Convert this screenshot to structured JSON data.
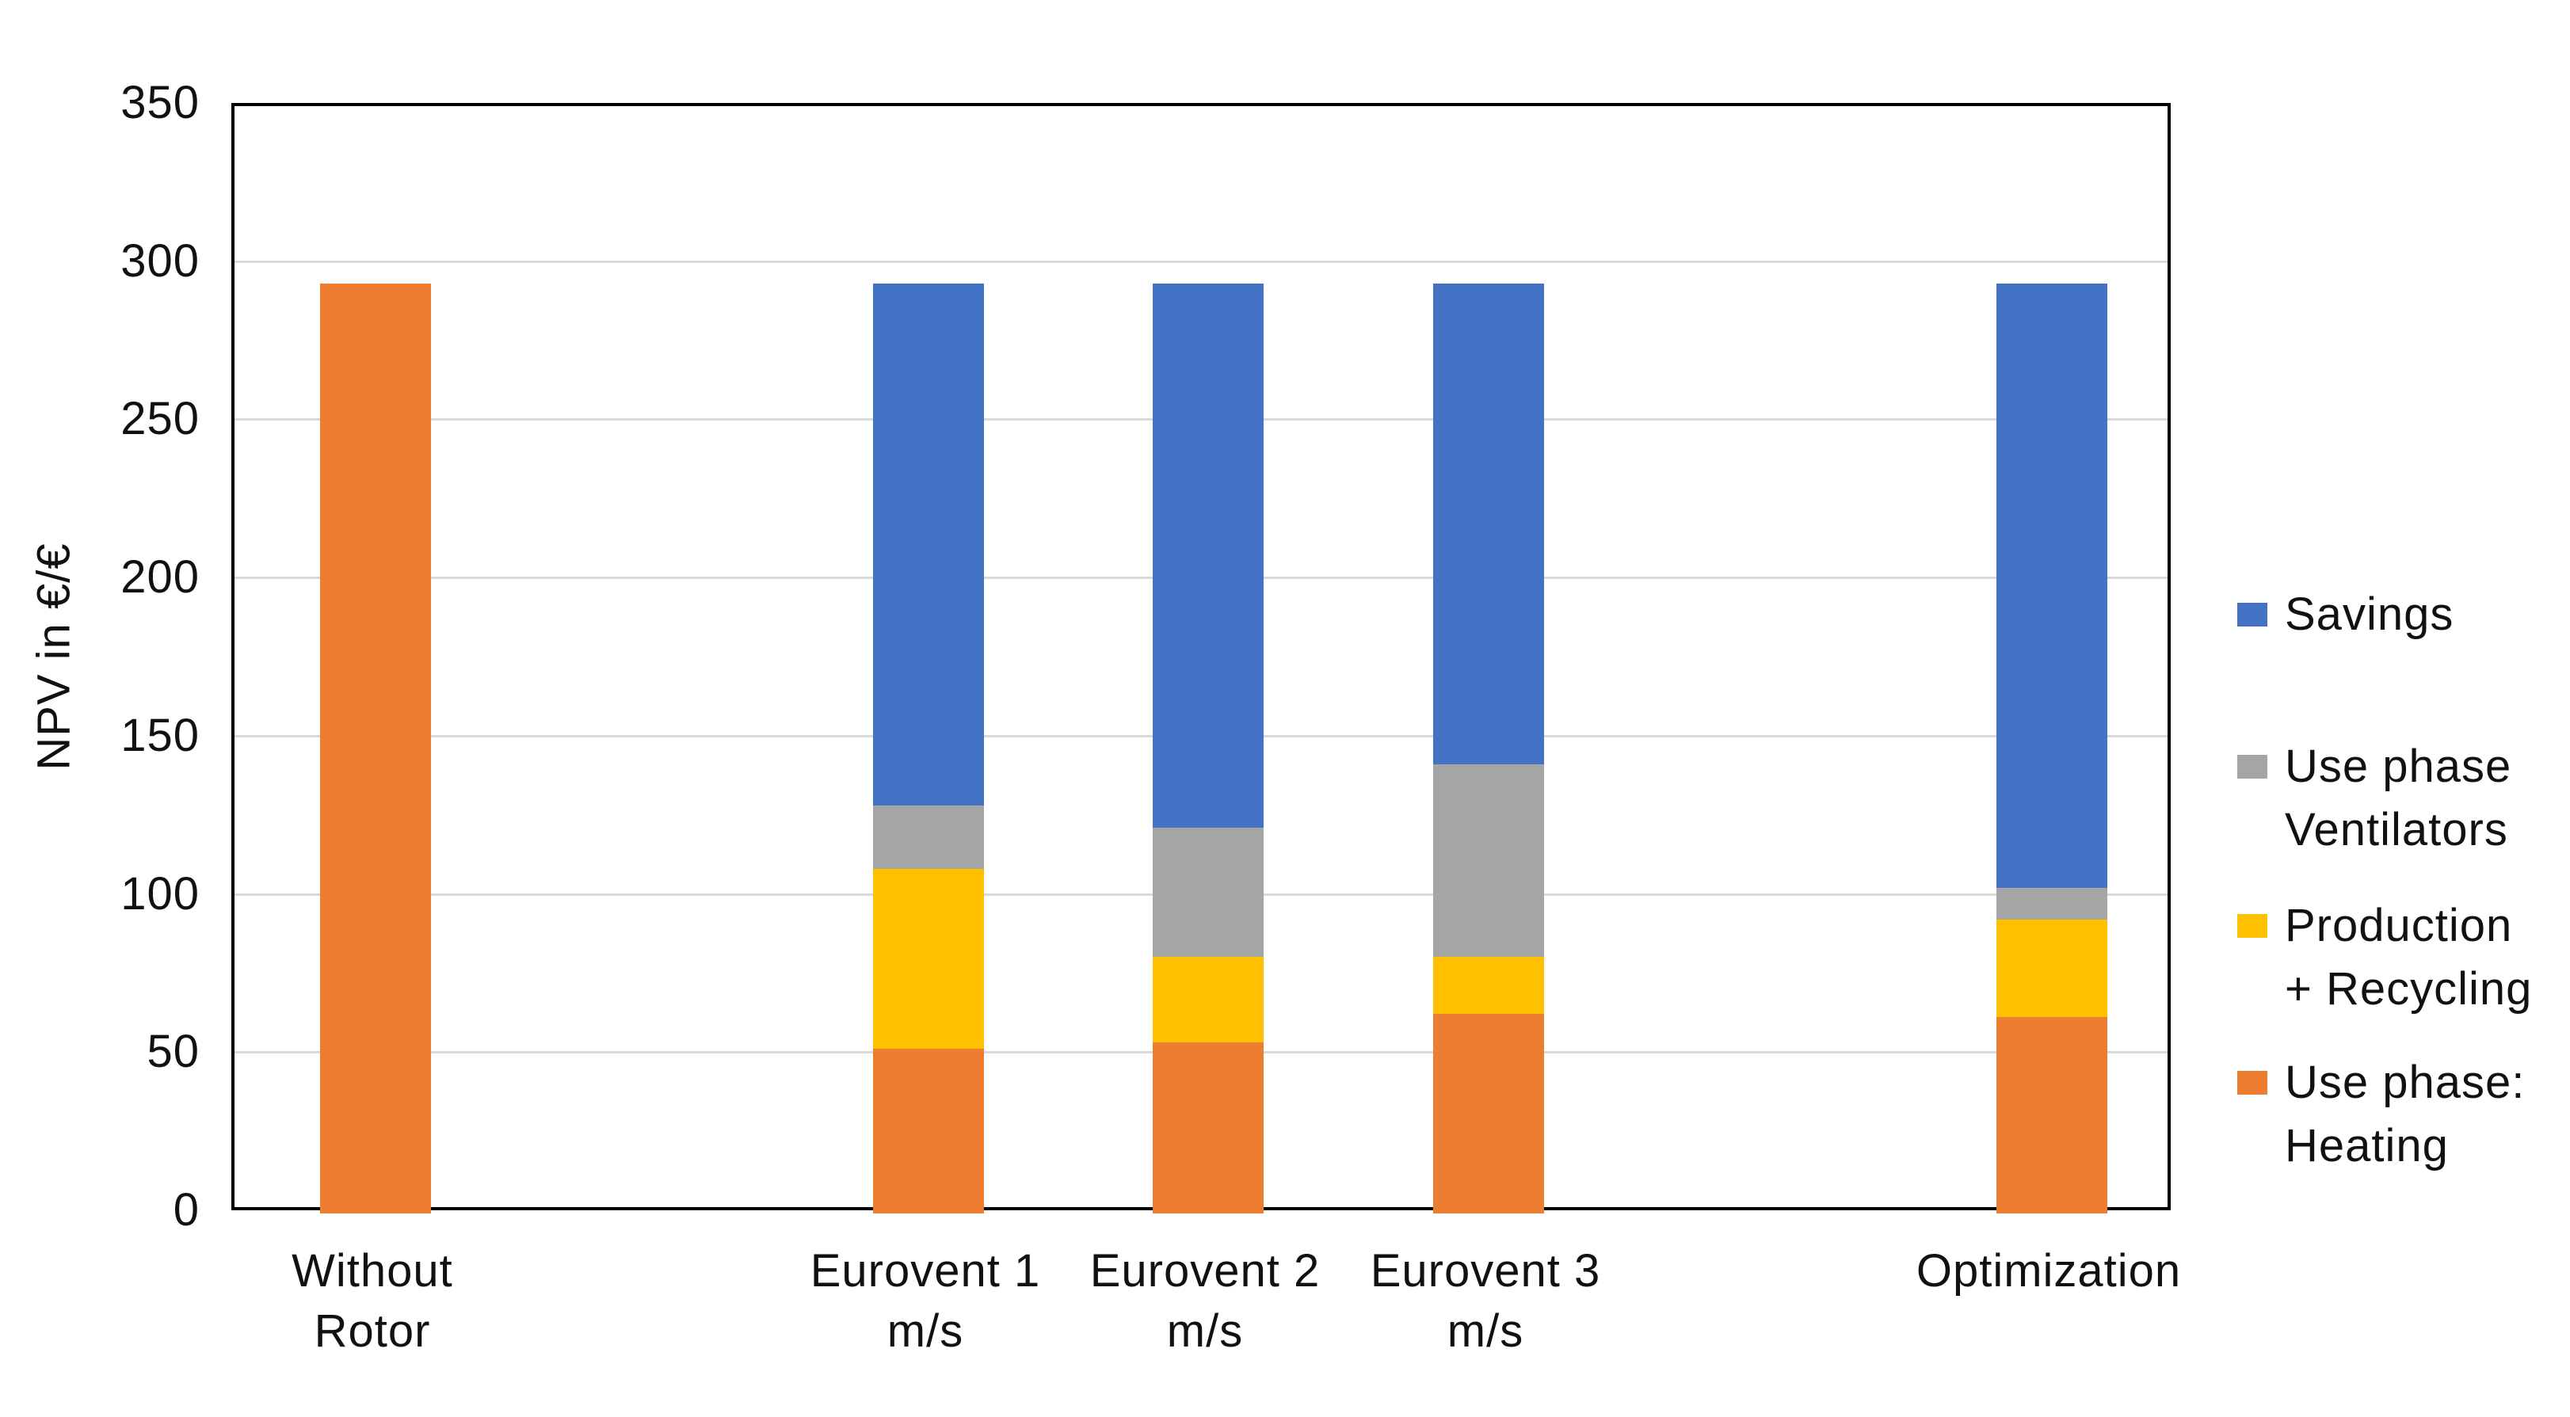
{
  "chart_data": {
    "type": "bar",
    "stacked": true,
    "title": "",
    "xlabel": "",
    "ylabel": "NPV in €/€",
    "ylim": [
      0,
      350
    ],
    "ytick_interval": 50,
    "yticks": [
      0,
      50,
      100,
      150,
      200,
      250,
      300,
      350
    ],
    "grid": "horizontal-light-gray",
    "legend_position": "right",
    "bar_total": 294,
    "categories": [
      {
        "label": "Without Rotor",
        "lines": [
          "Without",
          "Rotor"
        ]
      },
      {
        "label": "Eurovent 1 m/s",
        "lines": [
          "Eurovent 1",
          "m/s"
        ]
      },
      {
        "label": "Eurovent 2 m/s",
        "lines": [
          "Eurovent 2",
          "m/s"
        ]
      },
      {
        "label": "Eurovent 3 m/s",
        "lines": [
          "Eurovent 3",
          "m/s"
        ]
      },
      {
        "label": "Optimization",
        "lines": [
          "Optimization"
        ]
      }
    ],
    "series": [
      {
        "name": "Use phase: Heating",
        "color": "#ED7D31",
        "values": [
          294,
          52,
          54,
          63,
          62
        ]
      },
      {
        "name": "Production + Recycling",
        "color": "#FFC000",
        "values": [
          0,
          57,
          27,
          18,
          31
        ]
      },
      {
        "name": "Use phase Ventilators",
        "color": "#A5A5A5",
        "values": [
          0,
          20,
          41,
          61,
          10
        ]
      },
      {
        "name": "Savings",
        "color": "#4472C4",
        "values": [
          0,
          165,
          172,
          152,
          191
        ]
      }
    ],
    "legend": [
      {
        "label": "Savings",
        "lines": [
          "Savings"
        ],
        "color": "#4472C4"
      },
      {
        "label": "Use phase Ventilators",
        "lines": [
          "Use phase",
          "Ventilators"
        ],
        "color": "#A5A5A5"
      },
      {
        "label": "Production + Recycling",
        "lines": [
          "Production",
          "+ Recycling"
        ],
        "color": "#FFC000"
      },
      {
        "label": "Use phase: Heating",
        "lines": [
          "Use phase:",
          "Heating"
        ],
        "color": "#ED7D31"
      }
    ],
    "colors": {
      "savings_blue": "#4472C4",
      "ventilators_gray": "#A5A5A5",
      "production_yellow": "#FFC000",
      "heating_orange": "#ED7D31",
      "gridline": "#D9D9D9",
      "axis": "#000000"
    }
  }
}
